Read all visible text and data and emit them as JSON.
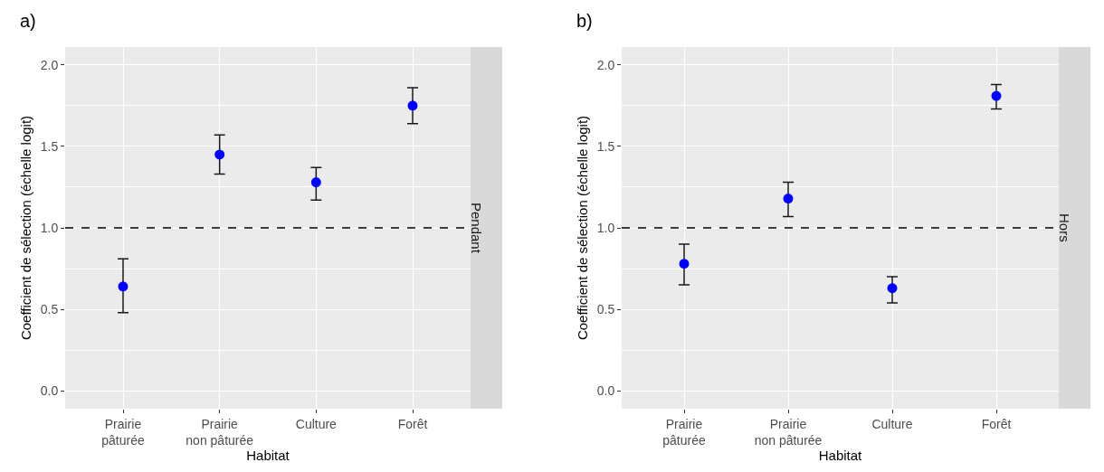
{
  "chart_data": [
    {
      "type": "scatter",
      "title": "a)",
      "xlabel": "Habitat",
      "ylabel": "Coefficient de sélection (échelle logit)",
      "annotations": [
        "Pendant"
      ],
      "categories": [
        "Prairie\npâturée",
        "Prairie\nnon pâturée",
        "Culture",
        "Forêt"
      ],
      "values": [
        0.64,
        1.45,
        1.28,
        1.75
      ],
      "color": "#0000ff",
      "errors": [
        [
          0.48,
          0.81
        ],
        [
          1.33,
          1.57
        ],
        [
          1.17,
          1.37
        ],
        [
          1.64,
          1.86
        ]
      ],
      "ylim": [
        -0.11,
        2.11
      ],
      "yticks": [
        {
          "value": 0,
          "label": "0.0"
        },
        {
          "value": 0.5,
          "label": "0.5"
        },
        {
          "value": 1,
          "label": "1.0"
        },
        {
          "value": 1.5,
          "label": "1.5"
        },
        {
          "value": 2,
          "label": "2.0"
        }
      ],
      "ref_lines": [
        {
          "axis": "y",
          "value": 1,
          "color": "#000000",
          "line_style": "dashed"
        }
      ],
      "grid": true,
      "marker": "circle"
    },
    {
      "type": "scatter",
      "title": "b)",
      "xlabel": "Habitat",
      "ylabel": "Coefficient de sélection (échelle logit)",
      "annotations": [
        "Hors"
      ],
      "categories": [
        "Prairie\npâturée",
        "Prairie\nnon pâturée",
        "Culture",
        "Forêt"
      ],
      "values": [
        0.78,
        1.18,
        0.63,
        1.81
      ],
      "color": "#0000ff",
      "errors": [
        [
          0.65,
          0.9
        ],
        [
          1.07,
          1.28
        ],
        [
          0.54,
          0.7
        ],
        [
          1.73,
          1.88
        ]
      ],
      "ylim": [
        -0.11,
        2.11
      ],
      "yticks": [
        {
          "value": 0,
          "label": "0.0"
        },
        {
          "value": 0.5,
          "label": "0.5"
        },
        {
          "value": 1,
          "label": "1.0"
        },
        {
          "value": 1.5,
          "label": "1.5"
        },
        {
          "value": 2,
          "label": "2.0"
        }
      ],
      "ref_lines": [
        {
          "axis": "y",
          "value": 1,
          "color": "#000000",
          "line_style": "dashed"
        }
      ],
      "grid": true,
      "marker": "circle"
    }
  ]
}
